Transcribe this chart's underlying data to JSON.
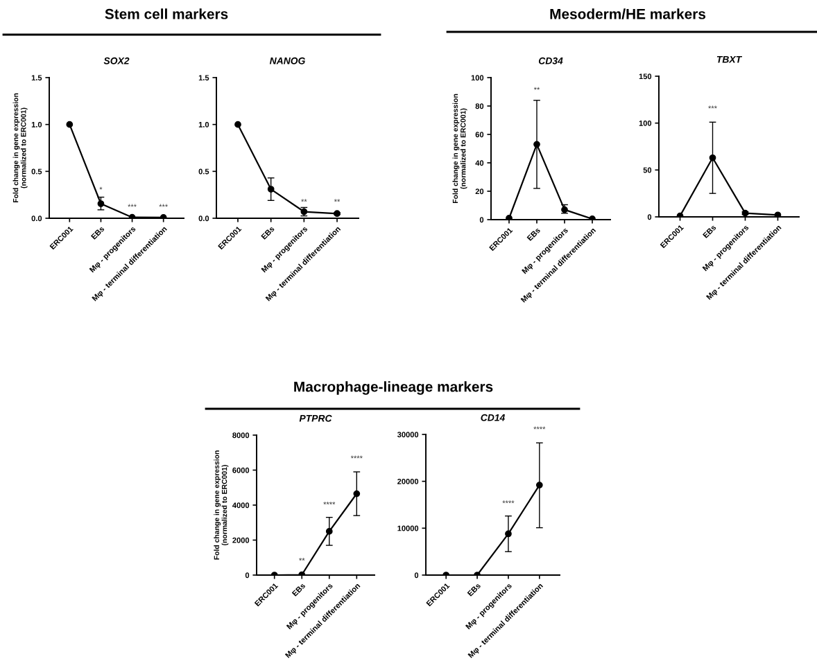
{
  "chart_data": [
    {
      "type": "line",
      "title": "SOX2",
      "ylabel": "Fold change in gene expression\n(normalized to ERC001)",
      "categories": [
        "ERC001",
        "EBs",
        "Mφ - progenitors",
        "Mφ - terminal differentiation"
      ],
      "values": [
        1.0,
        0.155,
        0.01,
        0.008
      ],
      "errors": [
        null,
        [
          0.09,
          0.225
        ],
        null,
        null
      ],
      "color": "#000000",
      "marker": "circle",
      "line_style": "solid",
      "ylim": [
        0,
        1.5
      ],
      "yticks": [
        {
          "value": 0,
          "label": "0.0"
        },
        {
          "value": 0.5,
          "label": "0.5"
        },
        {
          "value": 1.0,
          "label": "1.0"
        },
        {
          "value": 1.5,
          "label": "1.5"
        }
      ],
      "annotations": [
        "Stem cell markers",
        "*",
        "***",
        "***"
      ]
    },
    {
      "type": "line",
      "title": "NANOG",
      "categories": [
        "ERC001",
        "EBs",
        "Mφ - progenitors",
        "Mφ - terminal differentiation"
      ],
      "values": [
        1.0,
        0.31,
        0.07,
        0.05
      ],
      "errors": [
        null,
        [
          0.19,
          0.43
        ],
        [
          0.025,
          0.115
        ],
        [
          0.04,
          0.06
        ]
      ],
      "color": "#000000",
      "marker": "circle",
      "line_style": "solid",
      "ylim": [
        0,
        1.5
      ],
      "yticks": [
        {
          "value": 0,
          "label": "0.0"
        },
        {
          "value": 0.5,
          "label": "0.5"
        },
        {
          "value": 1.0,
          "label": "1.0"
        },
        {
          "value": 1.5,
          "label": "1.5"
        }
      ],
      "annotations": [
        "**",
        "**"
      ]
    },
    {
      "type": "line",
      "title": "CD34",
      "ylabel": "Fold change in gene expression\n(normalized to ERC001)",
      "categories": [
        "ERC001",
        "EBs",
        "Mφ - progenitors",
        "Mφ - terminal differentiation"
      ],
      "values": [
        1,
        53,
        7,
        0.5
      ],
      "errors": [
        null,
        [
          22,
          84
        ],
        [
          4.5,
          10.5
        ],
        null
      ],
      "color": "#000000",
      "marker": "circle",
      "line_style": "solid",
      "ylim": [
        0,
        100
      ],
      "yticks": [
        0,
        20,
        40,
        60,
        80,
        100
      ],
      "annotations": [
        "Mesoderm/HE markers",
        "**"
      ]
    },
    {
      "type": "line",
      "title": "TBXT",
      "categories": [
        "ERC001",
        "EBs",
        "Mφ - progenitors",
        "Mφ - terminal differentiation"
      ],
      "values": [
        1,
        63,
        4,
        2
      ],
      "errors": [
        null,
        [
          25,
          101
        ],
        [
          2.5,
          5.5
        ],
        null
      ],
      "color": "#000000",
      "marker": "circle",
      "line_style": "solid",
      "ylim": [
        0,
        150
      ],
      "yticks": [
        0,
        50,
        100,
        150
      ],
      "annotations": [
        "***"
      ]
    },
    {
      "type": "line",
      "title": "PTPRC",
      "ylabel": "Fold change in gene expression\n(normalized to ERC001)",
      "categories": [
        "ERC001",
        "EBs",
        "Mφ - progenitors",
        "Mφ - terminal differentiation"
      ],
      "values": [
        0,
        20,
        2500,
        4650
      ],
      "errors": [
        null,
        null,
        [
          1700,
          3300
        ],
        [
          3400,
          5900
        ]
      ],
      "color": "#000000",
      "marker": "circle",
      "line_style": "solid",
      "ylim": [
        0,
        8000
      ],
      "yticks": [
        0,
        2000,
        4000,
        6000,
        8000
      ],
      "annotations": [
        "Macrophage-lineage markers",
        "**",
        "****",
        "****"
      ]
    },
    {
      "type": "line",
      "title": "CD14",
      "categories": [
        "ERC001",
        "EBs",
        "Mφ - progenitors",
        "Mφ - terminal differentiation"
      ],
      "values": [
        0,
        0,
        8800,
        19200
      ],
      "errors": [
        null,
        null,
        [
          5000,
          12600
        ],
        [
          10100,
          28200
        ]
      ],
      "color": "#000000",
      "marker": "circle",
      "line_style": "solid",
      "ylim": [
        0,
        30000
      ],
      "yticks": [
        0,
        10000,
        20000,
        30000
      ],
      "annotations": [
        "****",
        "****"
      ]
    }
  ]
}
